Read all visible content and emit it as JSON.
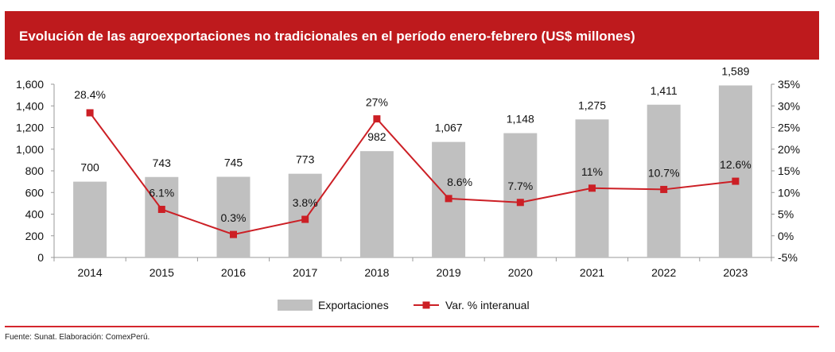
{
  "header": {
    "title": "Evolución de las agroexportaciones no tradicionales en el período enero-febrero (US$ millones)"
  },
  "footer": {
    "source": "Fuente: Sunat. Elaboración: ComexPerú."
  },
  "colors": {
    "header": "#be1a1d",
    "bars": "#c0c0c0",
    "line": "#cc1f25"
  },
  "chart_data": {
    "type": "bar+line",
    "title": "Evolución de las agroexportaciones no tradicionales en el período enero-febrero (US$ millones)",
    "categories": [
      "2014",
      "2015",
      "2016",
      "2017",
      "2018",
      "2019",
      "2020",
      "2021",
      "2022",
      "2023"
    ],
    "series": [
      {
        "name": "Exportaciones",
        "type": "bar",
        "axis": "left",
        "values": [
          700,
          743,
          745,
          773,
          982,
          1067,
          1148,
          1275,
          1411,
          1589
        ],
        "labels": [
          "700",
          "743",
          "745",
          "773",
          "982",
          "1,067",
          "1,148",
          "1,275",
          "1,411",
          "1,589"
        ]
      },
      {
        "name": "Var. % interanual",
        "type": "line",
        "axis": "right",
        "values": [
          28.4,
          6.1,
          0.3,
          3.8,
          27,
          8.6,
          7.7,
          11,
          10.7,
          12.6
        ],
        "labels": [
          "28.4%",
          "6.1%",
          "0.3%",
          "3.8%",
          "27%",
          "8.6%",
          "7.7%",
          "11%",
          "10.7%",
          "12.6%"
        ]
      }
    ],
    "ylim": [
      0,
      1600
    ],
    "yticks": [
      "0",
      "200",
      "400",
      "600",
      "800",
      "1,000",
      "1,200",
      "1,400",
      "1,600"
    ],
    "y2lim": [
      -5,
      35
    ],
    "y2ticks": [
      "-5%",
      "0%",
      "5%",
      "10%",
      "15%",
      "20%",
      "25%",
      "30%",
      "35%"
    ],
    "legend": "bottom-center",
    "grid": false
  }
}
